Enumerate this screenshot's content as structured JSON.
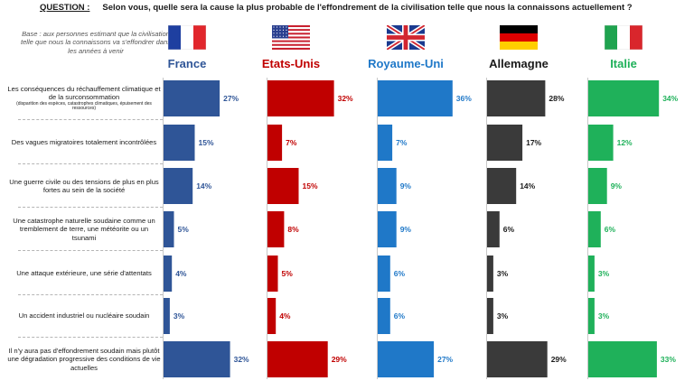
{
  "header": {
    "question_label": "QUESTION :",
    "question_text": "Selon vous, quelle sera la cause la plus probable de l'effondrement de la civilisation telle que nous la connaissons actuellement ?",
    "base_note": "Base : aux personnes estimant que la civilisation telle que nous la connaissons va s'effondrer dans les années à venir"
  },
  "countries": [
    {
      "name": "France",
      "color": "#2f5597",
      "flag": "fr-flag-icon"
    },
    {
      "name": "Etats-Unis",
      "color": "#c00000",
      "flag": "us-flag-icon"
    },
    {
      "name": "Royaume-Uni",
      "color": "#1f78c8",
      "flag": "uk-flag-icon"
    },
    {
      "name": "Allemagne",
      "color": "#3a3a3a",
      "flag": "de-flag-icon"
    },
    {
      "name": "Italie",
      "color": "#1fb15a",
      "flag": "it-flag-icon"
    }
  ],
  "label_colors": {
    "France": "#2f5597",
    "Etats-Unis": "#c00000",
    "Royaume-Uni": "#1f78c8",
    "Allemagne": "#1a1a1a",
    "Italie": "#1fb15a"
  },
  "rows": [
    {
      "label": "Les conséquences du réchauffement climatique et de la surconsommation",
      "sublabel": "(disparition des espèces, catastrophes climatiques, épuisement des ressources)"
    },
    {
      "label": "Des vagues migratoires totalement incontrôlées",
      "sublabel": ""
    },
    {
      "label": "Une guerre civile ou des tensions de plus en plus fortes au sein de la société",
      "sublabel": ""
    },
    {
      "label": "Une catastrophe naturelle soudaine comme un tremblement de terre, une météorite ou un tsunami",
      "sublabel": ""
    },
    {
      "label": "Une attaque extérieure, une série d'attentats",
      "sublabel": ""
    },
    {
      "label": "Un accident industriel ou nucléaire soudain",
      "sublabel": ""
    },
    {
      "label": "Il n'y aura pas d'effondrement soudain mais plutôt une dégradation progressive des conditions de vie actuelles",
      "sublabel": ""
    }
  ],
  "chart_data": {
    "type": "bar",
    "orientation": "horizontal",
    "categories": [
      "Les conséquences du réchauffement climatique et de la surconsommation",
      "Des vagues migratoires totalement incontrôlées",
      "Une guerre civile ou des tensions de plus en plus fortes au sein de la société",
      "Une catastrophe naturelle soudaine comme un tremblement de terre, une météorite ou un tsunami",
      "Une attaque extérieure, une série d'attentats",
      "Un accident industriel ou nucléaire soudain",
      "Il n'y aura pas d'effondrement soudain mais plutôt une dégradation progressive des conditions de vie actuelles"
    ],
    "series": [
      {
        "name": "France",
        "values": [
          27,
          15,
          14,
          5,
          4,
          3,
          32
        ]
      },
      {
        "name": "Etats-Unis",
        "values": [
          32,
          7,
          15,
          8,
          5,
          4,
          29
        ]
      },
      {
        "name": "Royaume-Uni",
        "values": [
          36,
          7,
          9,
          9,
          6,
          6,
          27
        ]
      },
      {
        "name": "Allemagne",
        "values": [
          28,
          17,
          14,
          6,
          3,
          3,
          29
        ]
      },
      {
        "name": "Italie",
        "values": [
          34,
          12,
          9,
          6,
          3,
          3,
          33
        ]
      }
    ],
    "value_suffix": "%"
  }
}
